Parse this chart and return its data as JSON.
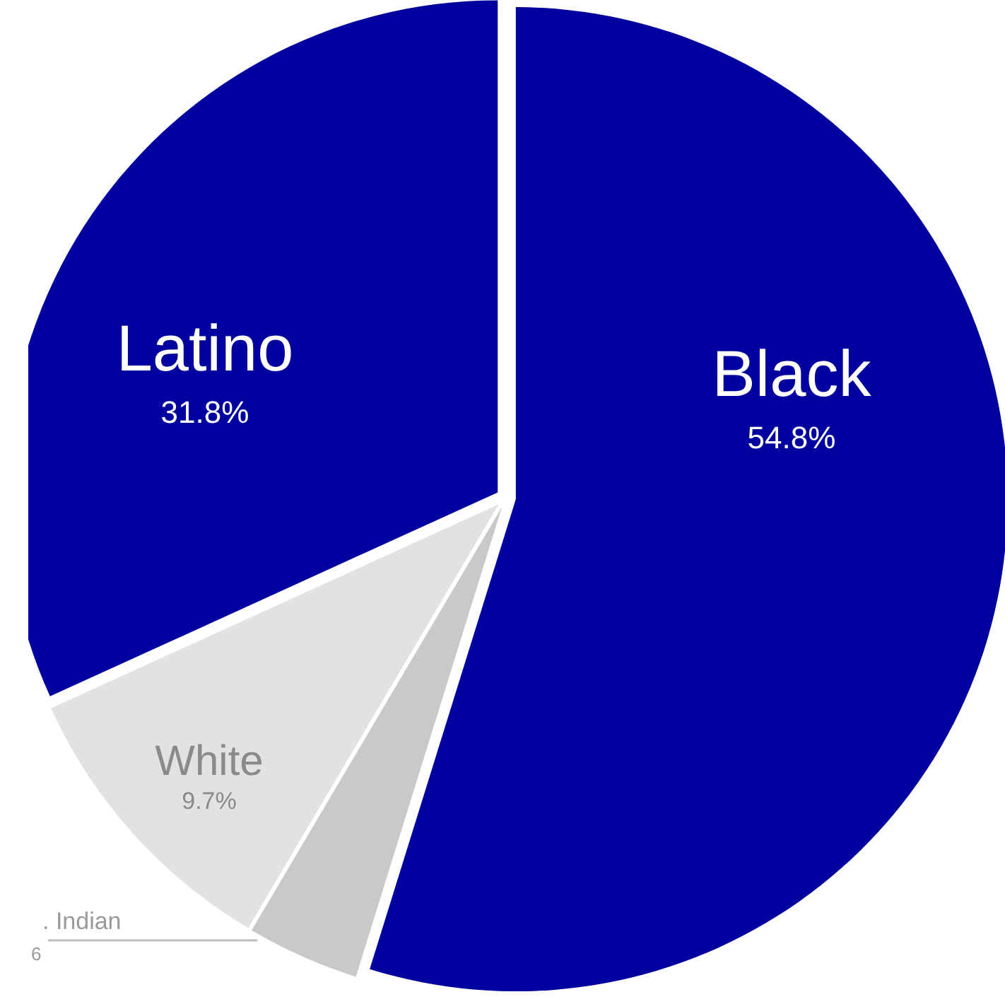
{
  "chart_data": {
    "type": "pie",
    "categories": [
      "Black",
      ". Indian",
      "White",
      "Latino"
    ],
    "values": [
      54.8,
      3.7,
      9.7,
      31.8
    ],
    "value_labels": [
      "54.8%",
      null,
      "9.7%",
      "31.8%"
    ],
    "annotations": [
      "6"
    ],
    "colors": [
      "#00009e",
      "#c9c9c9",
      "#e2e2e2",
      "#00009e"
    ]
  }
}
